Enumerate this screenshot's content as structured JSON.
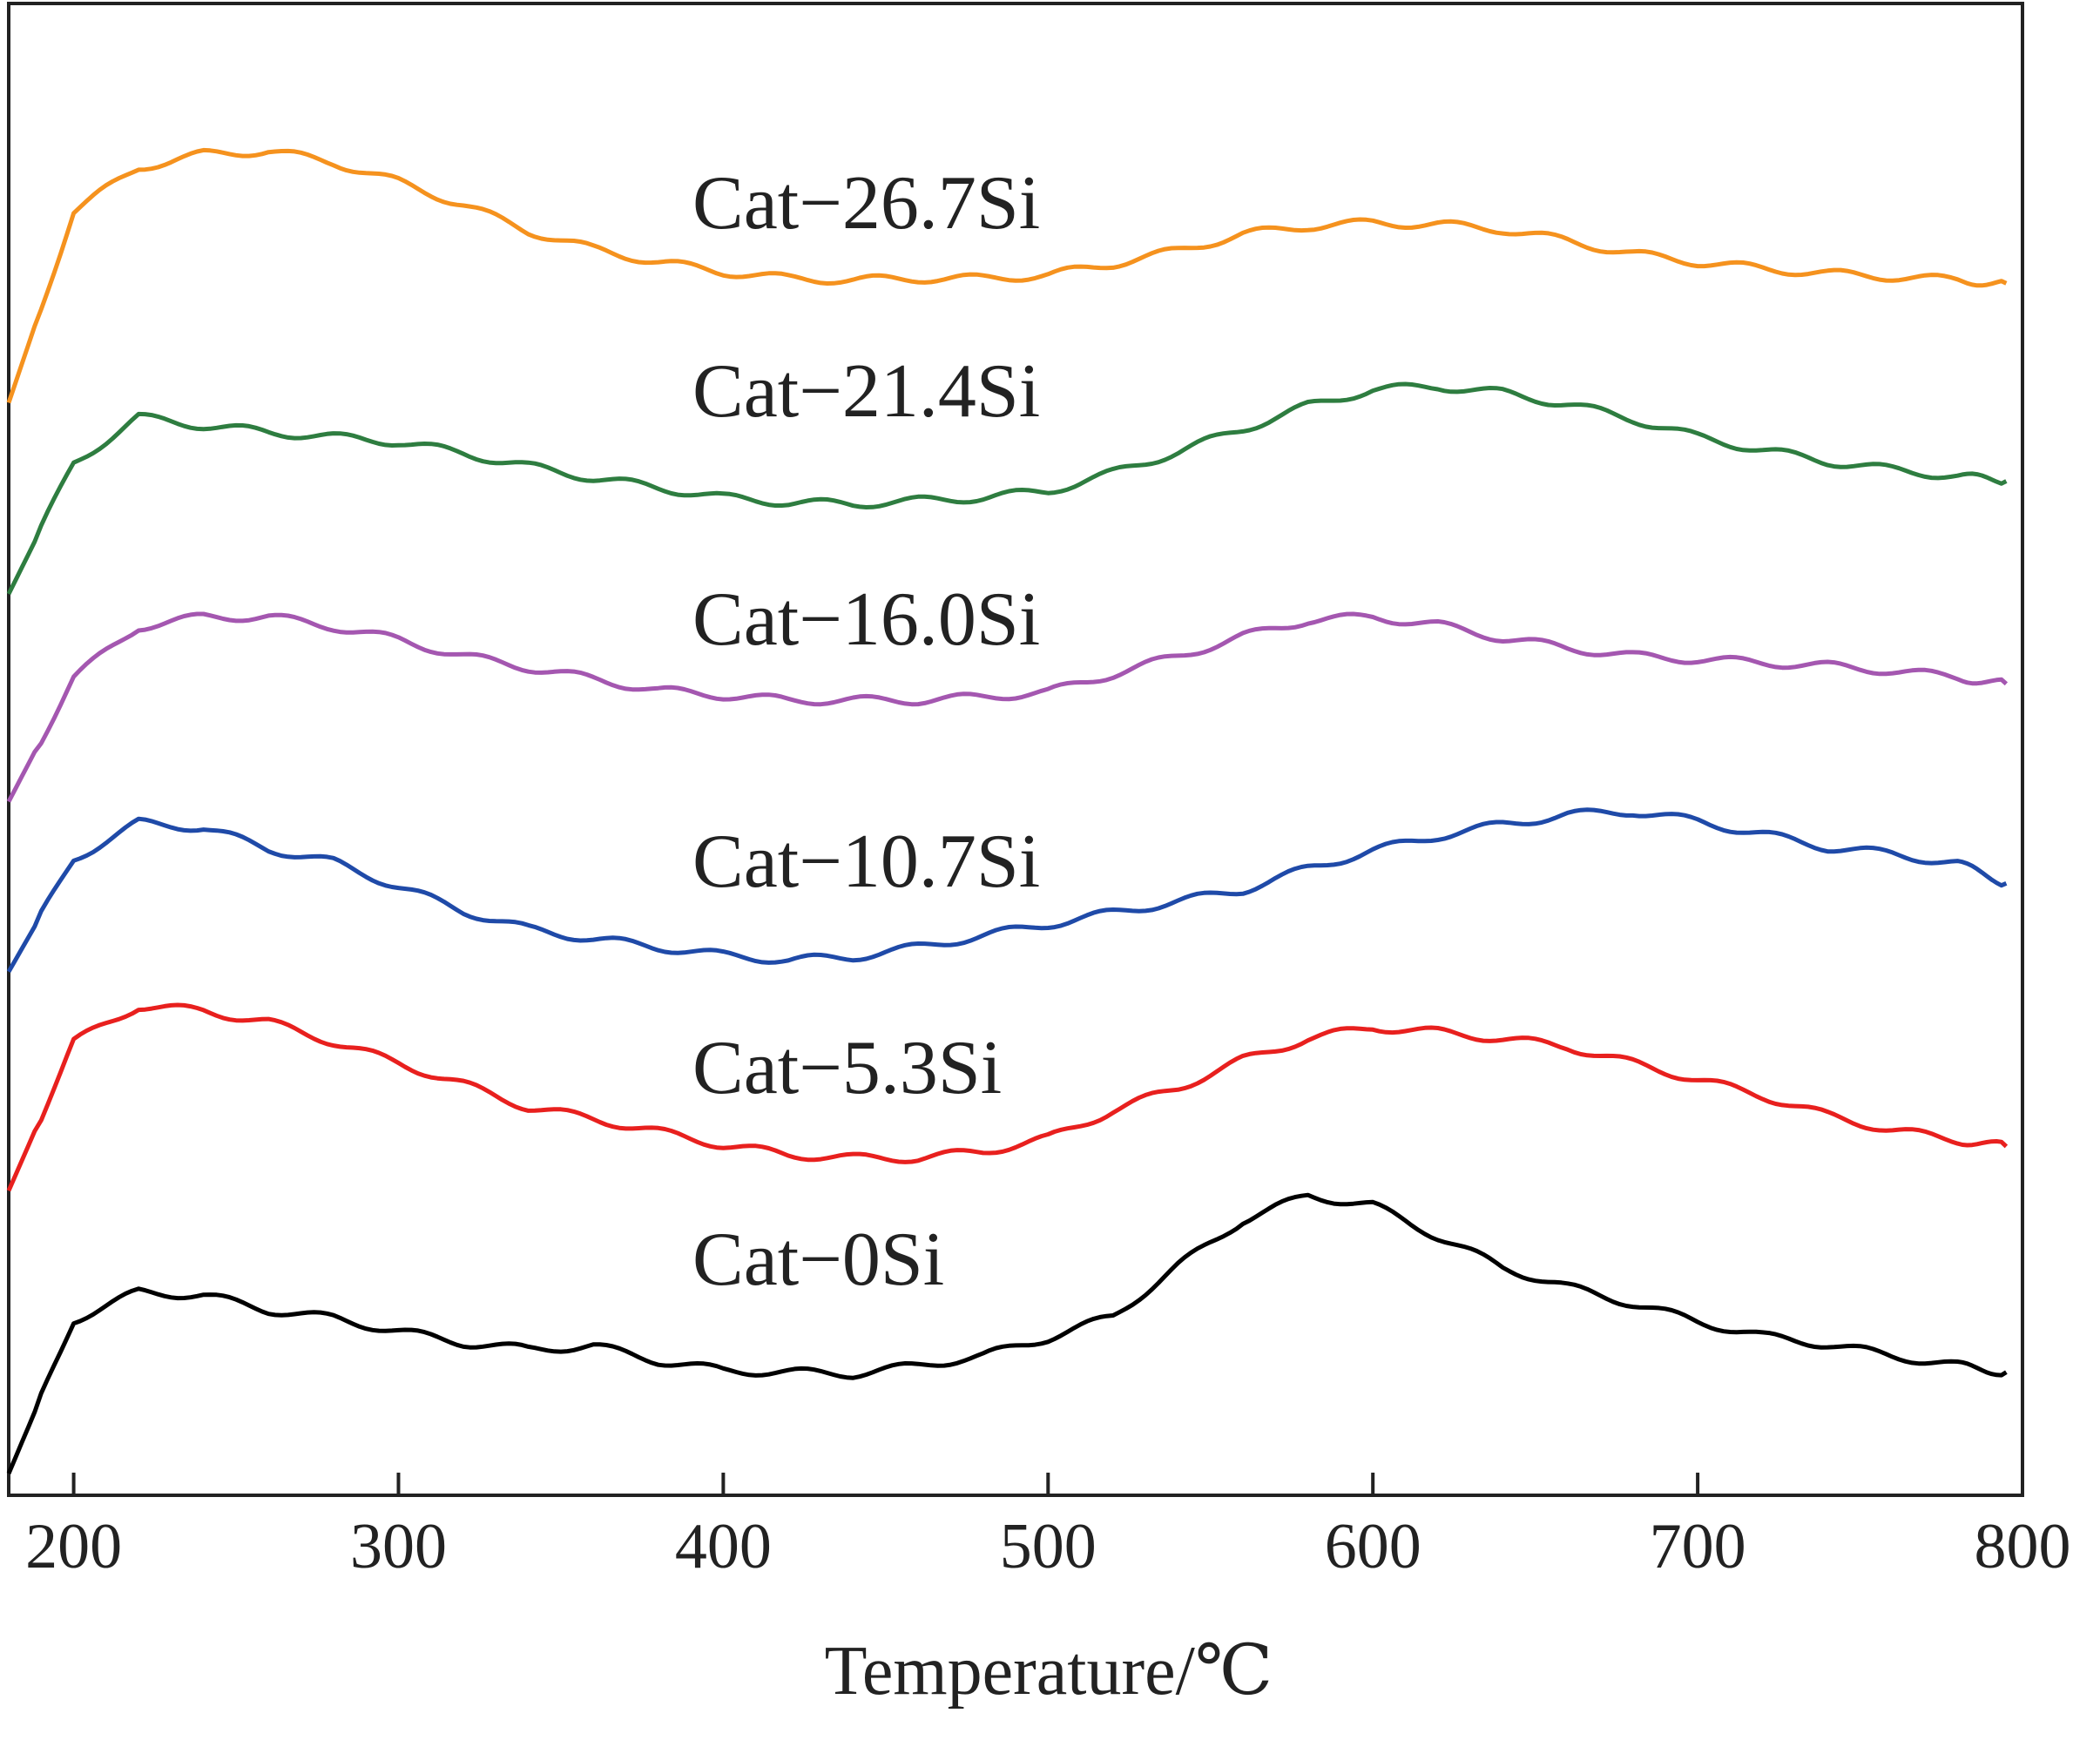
{
  "chart_data": {
    "type": "line",
    "xlabel": "Temperature/℃",
    "ylabel": "",
    "title": "",
    "xlim": [
      180,
      800
    ],
    "ylim": [
      0,
      8.8
    ],
    "y_ticks_shown": false,
    "legend": "inline labels above each curve",
    "x_ticks": [
      200,
      300,
      400,
      500,
      600,
      700,
      800
    ],
    "x": [
      180,
      200,
      220,
      240,
      260,
      280,
      300,
      320,
      340,
      360,
      380,
      400,
      420,
      440,
      460,
      480,
      500,
      520,
      540,
      560,
      580,
      600,
      620,
      640,
      660,
      680,
      700,
      720,
      740,
      760,
      780,
      795
    ],
    "series": [
      {
        "name": "Cat−0Si",
        "color": "#000000",
        "values": [
          0.0,
          0.94,
          1.11,
          1.09,
          1.0,
          0.95,
          0.87,
          0.8,
          0.76,
          0.78,
          0.69,
          0.63,
          0.62,
          0.61,
          0.66,
          0.72,
          0.83,
          0.96,
          1.27,
          1.55,
          1.7,
          1.64,
          1.45,
          1.26,
          1.14,
          1.04,
          0.93,
          0.84,
          0.79,
          0.72,
          0.66,
          0.62
        ]
      },
      {
        "name": "Cat−5.3Si",
        "color": "#e8201e",
        "values": [
          1.73,
          2.64,
          2.86,
          2.83,
          2.76,
          2.64,
          2.51,
          2.38,
          2.24,
          2.17,
          2.09,
          2.01,
          1.95,
          1.93,
          1.93,
          1.97,
          2.05,
          2.22,
          2.36,
          2.53,
          2.66,
          2.73,
          2.7,
          2.66,
          2.61,
          2.51,
          2.41,
          2.31,
          2.19,
          2.1,
          2.04,
          2.0
        ]
      },
      {
        "name": "Cat−10.7Si",
        "color": "#1f4aa8",
        "values": [
          3.07,
          3.76,
          3.98,
          3.95,
          3.82,
          3.74,
          3.59,
          3.44,
          3.33,
          3.27,
          3.22,
          3.17,
          3.14,
          3.16,
          3.22,
          3.29,
          3.36,
          3.43,
          3.5,
          3.57,
          3.7,
          3.81,
          3.9,
          3.97,
          4.03,
          4.05,
          3.99,
          3.91,
          3.83,
          3.79,
          3.73,
          3.61
        ]
      },
      {
        "name": "Cat−16.0Si",
        "color": "#a457b0",
        "values": [
          4.11,
          4.87,
          5.18,
          5.24,
          5.24,
          5.18,
          5.1,
          5.0,
          4.93,
          4.86,
          4.79,
          4.76,
          4.73,
          4.73,
          4.73,
          4.75,
          4.78,
          4.89,
          5.0,
          5.12,
          5.22,
          5.24,
          5.19,
          5.11,
          5.05,
          5.0,
          4.98,
          4.96,
          4.94,
          4.91,
          4.87,
          4.83
        ]
      },
      {
        "name": "Cat−21.4Si",
        "color": "#2e7d40",
        "values": [
          5.38,
          6.18,
          6.46,
          6.41,
          6.37,
          6.34,
          6.31,
          6.24,
          6.16,
          6.09,
          6.03,
          5.97,
          5.94,
          5.93,
          5.95,
          5.97,
          6.01,
          6.12,
          6.25,
          6.39,
          6.53,
          6.63,
          6.65,
          6.61,
          6.54,
          6.45,
          6.34,
          6.26,
          6.19,
          6.14,
          6.1,
          6.07
        ]
      },
      {
        "name": "Cat−26.7Si",
        "color": "#f5921e",
        "values": [
          6.55,
          7.72,
          7.99,
          8.07,
          8.09,
          8.02,
          7.9,
          7.76,
          7.6,
          7.49,
          7.41,
          7.35,
          7.31,
          7.3,
          7.31,
          7.31,
          7.33,
          7.4,
          7.48,
          7.58,
          7.63,
          7.65,
          7.64,
          7.61,
          7.54,
          7.46,
          7.41,
          7.37,
          7.34,
          7.32,
          7.3,
          7.28
        ]
      }
    ]
  }
}
